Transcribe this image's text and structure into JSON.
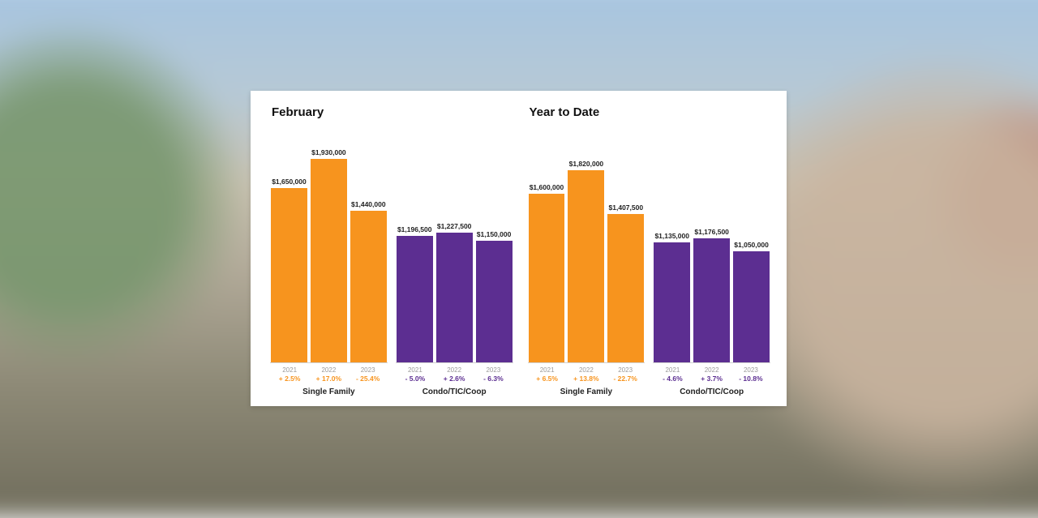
{
  "background": {
    "description": "blurred-sf-painted-ladies-cityscape"
  },
  "chart": {
    "colors": {
      "single_family": "#f7941e",
      "condo": "#5c2e91",
      "card_bg": "#ffffff",
      "axis": "#d0d0d0",
      "text": "#111111",
      "year_label": "#9a9a9a"
    },
    "y_max": 2000000,
    "panels": [
      {
        "title": "February",
        "groups": [
          {
            "label": "Single Family",
            "color_key": "single_family",
            "bars": [
              {
                "year": "2021",
                "value": 1650000,
                "value_label": "$1,650,000",
                "pct": "+ 2.5%"
              },
              {
                "year": "2022",
                "value": 1930000,
                "value_label": "$1,930,000",
                "pct": "+ 17.0%"
              },
              {
                "year": "2023",
                "value": 1440000,
                "value_label": "$1,440,000",
                "pct": "- 25.4%"
              }
            ]
          },
          {
            "label": "Condo/TIC/Coop",
            "color_key": "condo",
            "bars": [
              {
                "year": "2021",
                "value": 1196500,
                "value_label": "$1,196,500",
                "pct": "- 5.0%"
              },
              {
                "year": "2022",
                "value": 1227500,
                "value_label": "$1,227,500",
                "pct": "+ 2.6%"
              },
              {
                "year": "2023",
                "value": 1150000,
                "value_label": "$1,150,000",
                "pct": "- 6.3%"
              }
            ]
          }
        ]
      },
      {
        "title": "Year to Date",
        "groups": [
          {
            "label": "Single Family",
            "color_key": "single_family",
            "bars": [
              {
                "year": "2021",
                "value": 1600000,
                "value_label": "$1,600,000",
                "pct": "+ 6.5%"
              },
              {
                "year": "2022",
                "value": 1820000,
                "value_label": "$1,820,000",
                "pct": "+ 13.8%"
              },
              {
                "year": "2023",
                "value": 1407500,
                "value_label": "$1,407,500",
                "pct": "- 22.7%"
              }
            ]
          },
          {
            "label": "Condo/TIC/Coop",
            "color_key": "condo",
            "bars": [
              {
                "year": "2021",
                "value": 1135000,
                "value_label": "$1,135,000",
                "pct": "- 4.6%"
              },
              {
                "year": "2022",
                "value": 1176500,
                "value_label": "$1,176,500",
                "pct": "+ 3.7%"
              },
              {
                "year": "2023",
                "value": 1050000,
                "value_label": "$1,050,000",
                "pct": "- 10.8%"
              }
            ]
          }
        ]
      }
    ]
  }
}
